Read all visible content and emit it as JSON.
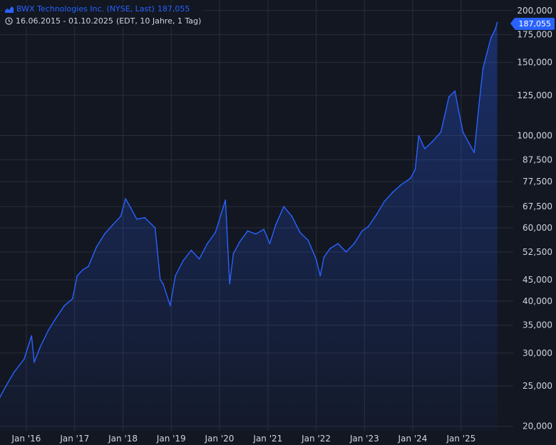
{
  "legend": {
    "title": "BWX Technologies Inc. (NYSE, Last)",
    "last_value": "187,055",
    "range": "16.06.2015 - 01.10.2025",
    "meta": "(EDT, 10 Jahre, 1 Tag)"
  },
  "price_badge": "187,055",
  "colors": {
    "background": "#131722",
    "line": "#2962ff",
    "grid": "#2a2e39",
    "text": "#d1d4dc"
  },
  "icons": [
    "area-chart-icon",
    "clock-icon"
  ],
  "chart_data": {
    "type": "area",
    "title": "BWX Technologies Inc. (NYSE, Last)",
    "y_scale": "log",
    "ylim": [
      19500,
      212000
    ],
    "xlim": [
      "2015-06-16",
      "2026-01-30"
    ],
    "grid": true,
    "y_ticks": [
      20000,
      25000,
      30000,
      35000,
      40000,
      45000,
      52500,
      60000,
      67500,
      77500,
      87500,
      100000,
      125000,
      150000,
      175000,
      200000
    ],
    "y_tick_labels": [
      "20,000",
      "25,000",
      "30,000",
      "35,000",
      "40,000",
      "45,000",
      "52,500",
      "60,000",
      "67,500",
      "77,500",
      "87,500",
      "100,000",
      "125,000",
      "150,000",
      "175,000",
      "200,000"
    ],
    "x_ticks": [
      "2016-01-01",
      "2017-01-01",
      "2018-01-01",
      "2019-01-01",
      "2020-01-01",
      "2021-01-01",
      "2022-01-01",
      "2023-01-01",
      "2024-01-01",
      "2025-01-01"
    ],
    "x_tick_labels": [
      "Jan '16",
      "Jan '17",
      "Jan '18",
      "Jan '19",
      "Jan '20",
      "Jan '21",
      "Jan '22",
      "Jan '23",
      "Jan '24",
      "Jan '25"
    ],
    "series": [
      {
        "name": "BWX Technologies Inc.",
        "x": [
          "2015-06-16",
          "2015-08-01",
          "2015-10-01",
          "2015-12-15",
          "2016-02-10",
          "2016-03-01",
          "2016-04-15",
          "2016-06-15",
          "2016-08-15",
          "2016-10-15",
          "2016-12-15",
          "2017-01-20",
          "2017-03-01",
          "2017-04-15",
          "2017-06-15",
          "2017-08-15",
          "2017-10-15",
          "2017-12-15",
          "2018-01-20",
          "2018-03-01",
          "2018-04-15",
          "2018-06-15",
          "2018-09-01",
          "2018-10-10",
          "2018-11-01",
          "2018-12-24",
          "2019-02-01",
          "2019-04-01",
          "2019-06-01",
          "2019-08-01",
          "2019-10-01",
          "2019-12-01",
          "2020-02-15",
          "2020-03-18",
          "2020-04-15",
          "2020-06-01",
          "2020-08-01",
          "2020-10-01",
          "2020-12-01",
          "2021-01-15",
          "2021-03-01",
          "2021-05-01",
          "2021-07-01",
          "2021-09-01",
          "2021-11-01",
          "2021-12-31",
          "2022-02-01",
          "2022-03-01",
          "2022-04-15",
          "2022-06-15",
          "2022-08-15",
          "2022-10-15",
          "2022-12-15",
          "2023-02-01",
          "2023-04-01",
          "2023-06-01",
          "2023-08-01",
          "2023-10-01",
          "2023-12-15",
          "2024-01-20",
          "2024-02-15",
          "2024-04-01",
          "2024-06-01",
          "2024-08-01",
          "2024-10-01",
          "2024-11-15",
          "2024-12-15",
          "2025-01-15",
          "2025-03-01",
          "2025-04-10",
          "2025-05-15",
          "2025-06-15",
          "2025-07-15",
          "2025-08-15",
          "2025-09-15",
          "2025-10-01"
        ],
        "values": [
          23500,
          25000,
          27000,
          29000,
          33000,
          28500,
          31000,
          34000,
          36500,
          39000,
          40500,
          46000,
          47500,
          48500,
          54000,
          58000,
          61000,
          64000,
          70500,
          67000,
          63000,
          63500,
          60000,
          45000,
          44000,
          39000,
          46000,
          50000,
          53000,
          50500,
          55000,
          58500,
          70000,
          44000,
          52000,
          55500,
          59000,
          58000,
          59500,
          55000,
          61000,
          67500,
          64000,
          58500,
          56000,
          50500,
          46000,
          51000,
          53500,
          55000,
          52500,
          55000,
          59000,
          60500,
          64500,
          69500,
          73000,
          76000,
          79000,
          83000,
          100000,
          93000,
          97000,
          102000,
          124000,
          128000,
          114000,
          102000,
          96000,
          91000,
          118000,
          145000,
          158000,
          172000,
          180000,
          187055
        ]
      }
    ]
  }
}
